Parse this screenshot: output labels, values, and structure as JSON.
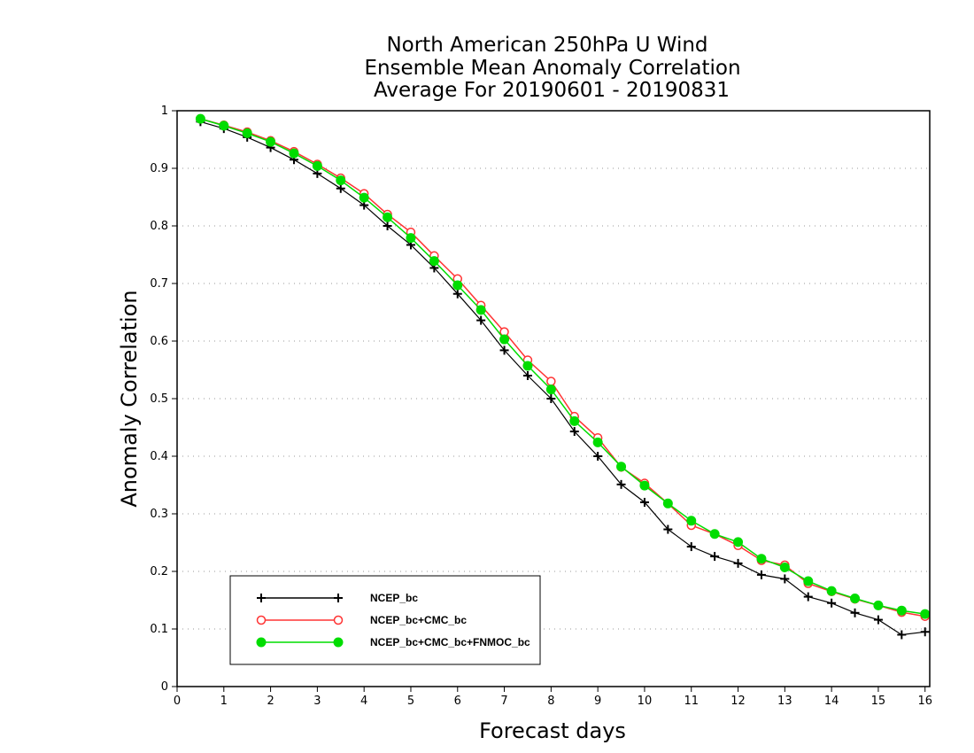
{
  "chart_data": {
    "type": "line",
    "title": [
      "North American 250hPa U Wind",
      "Ensemble Mean Anomaly Correlation",
      "Average For 20190601 - 20190831"
    ],
    "xlabel": "Forecast days",
    "ylabel": "Anomaly Correlation",
    "xlim": [
      0,
      16.1
    ],
    "ylim": [
      0,
      1
    ],
    "xticks": [
      "0",
      "1",
      "2",
      "3",
      "4",
      "5",
      "6",
      "7",
      "8",
      "9",
      "10",
      "11",
      "12",
      "13",
      "14",
      "15",
      "16"
    ],
    "yticks": [
      "0",
      "0.1",
      "0.2",
      "0.3",
      "0.4",
      "0.5",
      "0.6",
      "0.7",
      "0.8",
      "0.9",
      "1"
    ],
    "grid": "horizontal dotted",
    "legend_position": "bottom-left",
    "x": [
      0.5,
      1,
      1.5,
      2,
      2.5,
      3,
      3.5,
      4,
      4.5,
      5,
      5.5,
      6,
      6.5,
      7,
      7.5,
      8,
      8.5,
      9,
      9.5,
      10,
      10.5,
      11,
      11.5,
      12,
      12.5,
      13,
      13.5,
      14,
      14.5,
      15,
      15.5,
      16
    ],
    "series": [
      {
        "name": "NCEP_bc",
        "color": "#000000",
        "marker": "plus",
        "values": [
          0.981,
          0.969,
          0.954,
          0.936,
          0.915,
          0.891,
          0.865,
          0.836,
          0.8,
          0.767,
          0.727,
          0.682,
          0.636,
          0.584,
          0.54,
          0.5,
          0.443,
          0.4,
          0.351,
          0.32,
          0.273,
          0.243,
          0.226,
          0.214,
          0.194,
          0.187,
          0.156,
          0.145,
          0.128,
          0.116,
          0.09,
          0.095
        ]
      },
      {
        "name": "NCEP_bc+CMC_bc",
        "color": "#ff3333",
        "marker": "open-circle",
        "values": [
          0.986,
          0.975,
          0.963,
          0.948,
          0.929,
          0.907,
          0.883,
          0.856,
          0.82,
          0.789,
          0.748,
          0.708,
          0.662,
          0.616,
          0.567,
          0.53,
          0.469,
          0.432,
          0.381,
          0.353,
          0.318,
          0.28,
          0.265,
          0.245,
          0.219,
          0.211,
          0.179,
          0.165,
          0.152,
          0.141,
          0.129,
          0.122
        ]
      },
      {
        "name": "NCEP_bc+CMC_bc+FNMOC_bc",
        "color": "#00dd00",
        "marker": "filled-circle",
        "values": [
          0.986,
          0.974,
          0.961,
          0.946,
          0.926,
          0.904,
          0.879,
          0.849,
          0.815,
          0.779,
          0.739,
          0.697,
          0.654,
          0.603,
          0.557,
          0.516,
          0.461,
          0.424,
          0.382,
          0.349,
          0.318,
          0.288,
          0.265,
          0.251,
          0.222,
          0.207,
          0.183,
          0.166,
          0.153,
          0.141,
          0.132,
          0.126
        ]
      }
    ]
  }
}
